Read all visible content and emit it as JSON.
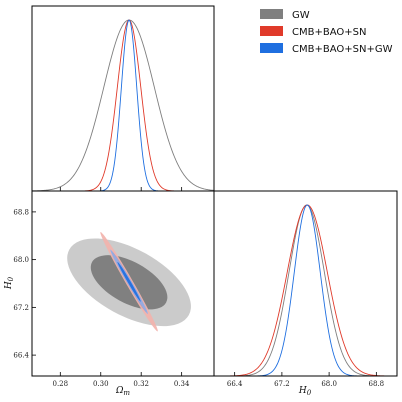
{
  "chart_data": {
    "type": "triangle-plot",
    "legend": {
      "placement": "top-right",
      "entries": [
        {
          "label": "GW",
          "color": "#7f7f7f"
        },
        {
          "label": "CMB+BAO+SN",
          "color": "#e03a2a"
        },
        {
          "label": "CMB+BAO+SN+GW",
          "color": "#1f6fe0"
        }
      ]
    },
    "params": {
      "omega_m": {
        "label": "Ω_m",
        "range": [
          0.266,
          0.356
        ],
        "ticks": [
          0.28,
          0.3,
          0.32,
          0.34
        ],
        "tick_labels": [
          "0.28",
          "0.30",
          "0.32",
          "0.34"
        ]
      },
      "H0": {
        "label": "H_0",
        "range": [
          66.05,
          69.15
        ],
        "ticks": [
          66.4,
          67.2,
          68.0,
          68.8
        ],
        "tick_labels": [
          "66.4",
          "67.2",
          "68.0",
          "68.8"
        ]
      }
    },
    "series": [
      {
        "name": "GW",
        "color": "#7f7f7f",
        "omega_m": {
          "mean": 0.314,
          "sigma": 0.0125
        },
        "H0": {
          "mean": 67.62,
          "sigma": 0.3
        },
        "correlation": -0.55
      },
      {
        "name": "CMB+BAO+SN",
        "color": "#e03a2a",
        "omega_m": {
          "mean": 0.314,
          "sigma": 0.0058
        },
        "H0": {
          "mean": 67.63,
          "sigma": 0.34
        },
        "correlation": -0.99
      },
      {
        "name": "CMB+BAO+SN+GW",
        "color": "#1f6fe0",
        "omega_m": {
          "mean": 0.314,
          "sigma": 0.0038
        },
        "H0": {
          "mean": 67.63,
          "sigma": 0.22
        },
        "correlation": -0.99
      }
    ]
  }
}
